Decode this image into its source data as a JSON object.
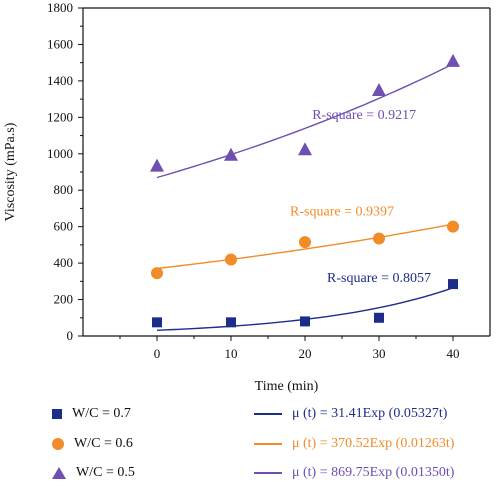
{
  "chart_data": {
    "type": "scatter",
    "xlabel": "Time (min)",
    "ylabel": "Viscosity (mPa.s)",
    "xlim": [
      -10,
      45
    ],
    "ylim": [
      0,
      1800
    ],
    "xticks": [
      0,
      10,
      20,
      30,
      40
    ],
    "yticks": [
      0,
      200,
      400,
      600,
      800,
      1000,
      1200,
      1400,
      1600,
      1800
    ],
    "grid": false,
    "legend_position": "bottom",
    "series": [
      {
        "name": "W/C = 0.7",
        "marker": "square",
        "color": "#1f2d8a",
        "x": [
          0,
          10,
          20,
          30,
          40
        ],
        "y": [
          75,
          75,
          80,
          100,
          285
        ],
        "fit": {
          "label": "μ (t) = 31.41Exp (0.05327t)",
          "a": 31.41,
          "b": 0.05327,
          "r_square": "R-square = 0.8057"
        }
      },
      {
        "name": "W/C = 0.6",
        "marker": "circle",
        "color": "#f28c28",
        "x": [
          0,
          10,
          20,
          30,
          40
        ],
        "y": [
          345,
          420,
          515,
          535,
          600
        ],
        "fit": {
          "label": "μ (t) = 370.52Exp (0.01263t)",
          "a": 370.52,
          "b": 0.01263,
          "r_square": "R-square = 0.9397"
        }
      },
      {
        "name": "W/C = 0.5",
        "marker": "triangle",
        "color": "#6f4fb0",
        "x": [
          0,
          10,
          20,
          30,
          40
        ],
        "y": [
          935,
          995,
          1025,
          1350,
          1510
        ],
        "fit": {
          "label": "μ (t) = 869.75Exp (0.01350t)",
          "a": 869.75,
          "b": 0.0135,
          "r_square": "R-square = 0.9217"
        }
      }
    ]
  },
  "legend": {
    "points": [
      {
        "label": "W/C = 0.7",
        "marker": "square",
        "color": "#1f2d8a"
      },
      {
        "label": "W/C = 0.6",
        "marker": "circle",
        "color": "#f28c28"
      },
      {
        "label": "W/C = 0.5",
        "marker": "triangle",
        "color": "#6f4fb0"
      }
    ],
    "fits": [
      {
        "label": "μ (t) = 31.41Exp (0.05327t)",
        "color": "#1f2d8a"
      },
      {
        "label": "μ (t) = 370.52Exp (0.01263t)",
        "color": "#f28c28"
      },
      {
        "label": "μ (t) = 869.75Exp (0.01350t)",
        "color": "#6f4fb0"
      }
    ]
  }
}
